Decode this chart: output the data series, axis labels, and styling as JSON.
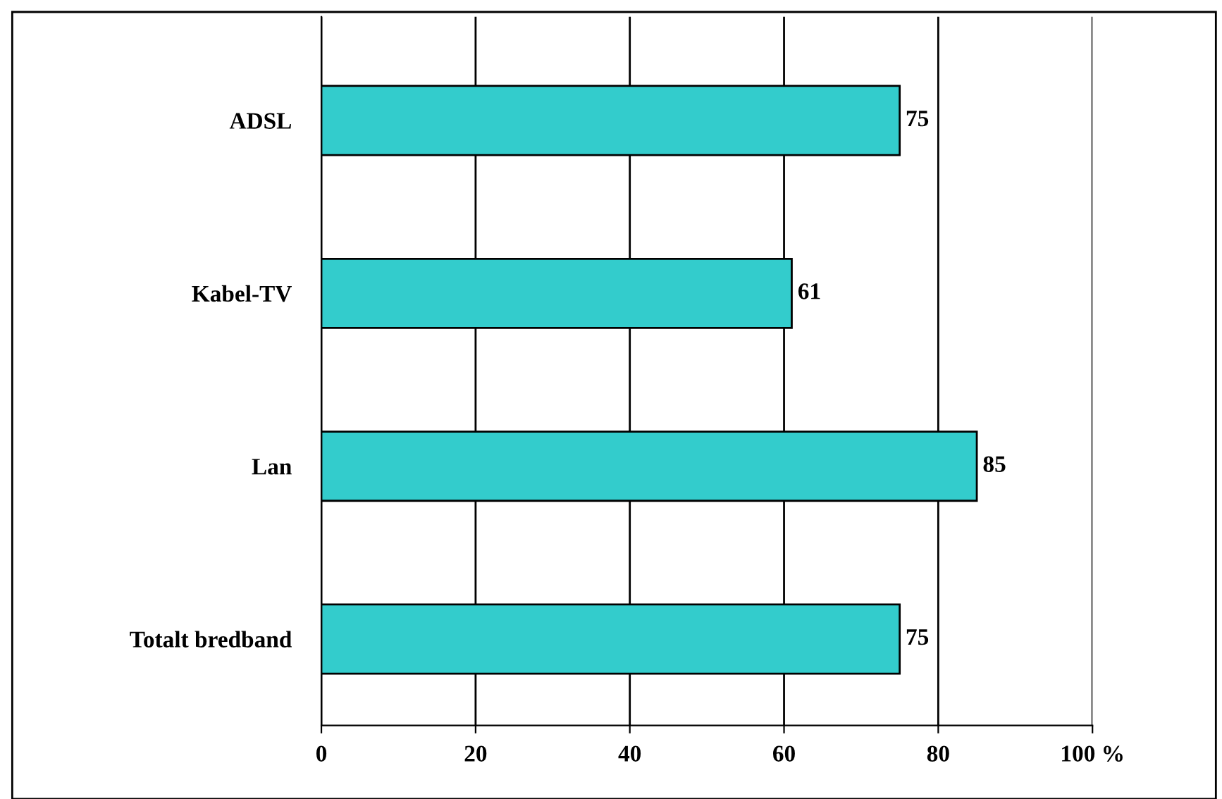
{
  "chart_data": {
    "type": "bar",
    "orientation": "horizontal",
    "categories": [
      "ADSL",
      "Kabel-TV",
      "Lan",
      "Totalt bredband"
    ],
    "values": [
      75,
      61,
      85,
      75
    ],
    "color": "#33cccc",
    "xlim": [
      0,
      100
    ],
    "xticks": [
      0,
      20,
      40,
      60,
      80,
      {
        "value": 100,
        "label": "100 %"
      }
    ],
    "grid": "x",
    "data_labels": true,
    "legend": false
  }
}
